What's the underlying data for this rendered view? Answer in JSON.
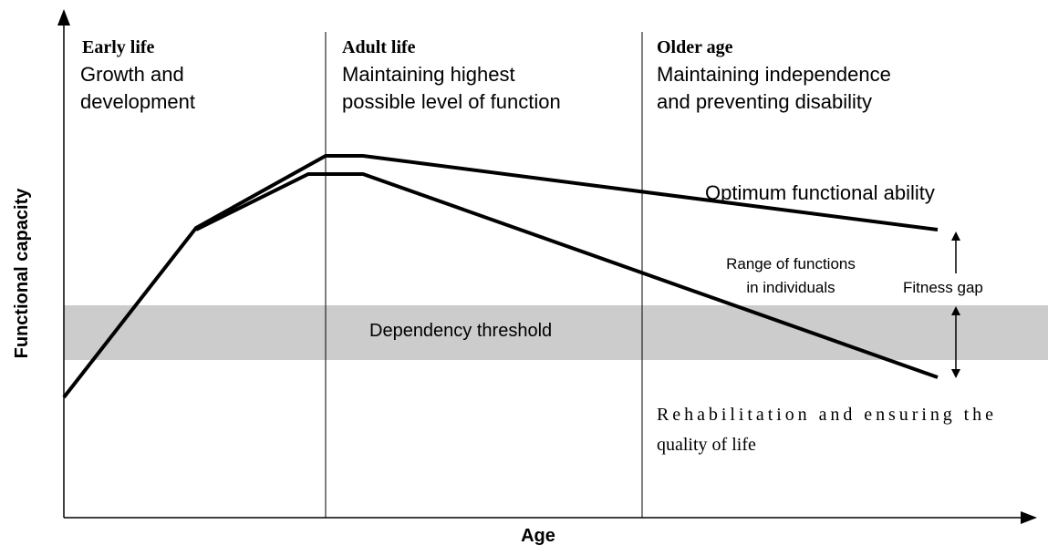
{
  "axes": {
    "y_label": "Functional capacity",
    "x_label": "Age"
  },
  "phases": [
    {
      "title": "Early life",
      "lines": [
        "Growth and",
        "development"
      ]
    },
    {
      "title": "Adult life",
      "lines": [
        "Maintaining highest",
        "possible level of function"
      ]
    },
    {
      "title": "Older age",
      "lines": [
        "Maintaining independence",
        "and preventing disability"
      ]
    }
  ],
  "labels": {
    "optimum": "Optimum functional ability",
    "range": [
      "Range of functions",
      "in individuals"
    ],
    "fitness_gap": "Fitness gap",
    "threshold": "Dependency threshold",
    "rehab": [
      "Rehabilitation and ensuring the",
      "quality of life"
    ]
  }
}
